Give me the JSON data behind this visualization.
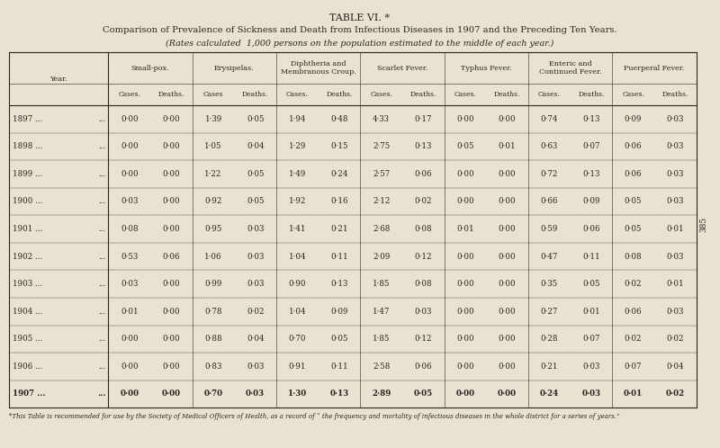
{
  "title": "TABLE VI. *",
  "subtitle": "Comparison of Prevalence of Sickness and Death from Infectious Diseases in 1907 and the Preceding Ten Years.",
  "subtitle2": "(Rates calculated  1,000 persons on the population estimated to the middle of each year.)",
  "footnote": "*This Table is recommended for use by the Society of Medical Officers of Health, as a record of “ the frequency and mortality of infectious diseases in the whole district for a series of years.”",
  "bg_color": "#e8e2d0",
  "text_color": "#2a2520",
  "col_groups": [
    {
      "label": "Small-pox.",
      "cols": [
        "Cases.",
        "Deaths."
      ]
    },
    {
      "label": "Erysipelas.",
      "cols": [
        "Cases",
        "Deaths."
      ]
    },
    {
      "label": "Diphtheria and\nMembranous Croup.",
      "cols": [
        "Cases.",
        "Deaths."
      ]
    },
    {
      "label": "Scarlet Fever.",
      "cols": [
        "Cases.",
        "Deaths."
      ]
    },
    {
      "label": "Typhus Fever.",
      "cols": [
        "Cases.",
        "Deaths."
      ]
    },
    {
      "label": "Enteric and\nContinued Fever.",
      "cols": [
        "Cases.",
        "Deaths."
      ]
    },
    {
      "label": "Puerperal Fever.",
      "cols": [
        "Cases.",
        "Deaths."
      ]
    }
  ],
  "year_labels": [
    "1897 ...",
    "1898 ...",
    "1899 ...",
    "1900 ...",
    "1901 ...",
    "1902 ...",
    "1903 ...",
    "1904 ...",
    "1905 ...",
    "1906 ...",
    "1907 ..."
  ],
  "year_dots": [
    "...",
    "...",
    "...",
    "...",
    "...",
    "...",
    "...",
    "...",
    "...",
    "...",
    "..."
  ],
  "data": [
    [
      "0·00",
      "0·00",
      "1·39",
      "0·05",
      "1·94",
      "0·48",
      "4·33",
      "0·17",
      "0·00",
      "0·00",
      "0·74",
      "0·13",
      "0·09",
      "0·03"
    ],
    [
      "0·00",
      "0·00",
      "1·05",
      "0·04",
      "1·29",
      "0·15",
      "2·75",
      "0·13",
      "0·05",
      "0·01",
      "0·63",
      "0·07",
      "0·06",
      "0·03"
    ],
    [
      "0·00",
      "0·00",
      "1·22",
      "0·05",
      "1·49",
      "0·24",
      "2·57",
      "0·06",
      "0·00",
      "0·00",
      "0·72",
      "0·13",
      "0·06",
      "0·03"
    ],
    [
      "0·03",
      "0·00",
      "0·92",
      "0·05",
      "1·92",
      "0·16",
      "2·12",
      "0·02",
      "0·00",
      "0·00",
      "0·66",
      "0·09",
      "0·05",
      "0·03"
    ],
    [
      "0·08",
      "0·00",
      "0·95",
      "0·03",
      "1·41",
      "0·21",
      "2·68",
      "0·08",
      "0·01",
      "0·00",
      "0·59",
      "0·06",
      "0·05",
      "0·01"
    ],
    [
      "0·53",
      "0·06",
      "1·06",
      "0·03",
      "1·04",
      "0·11",
      "2·09",
      "0·12",
      "0·00",
      "0·00",
      "0·47",
      "0·11",
      "0·08",
      "0·03"
    ],
    [
      "0·03",
      "0·00",
      "0·99",
      "0·03",
      "0·90",
      "0·13",
      "1·85",
      "0·08",
      "0·00",
      "0·00",
      "0·35",
      "0·05",
      "0·02",
      "0·01"
    ],
    [
      "0·01",
      "0·00",
      "0·78",
      "0·02",
      "1·04",
      "0·09",
      "1·47",
      "0·03",
      "0·00",
      "0·00",
      "0·27",
      "0·01",
      "0·06",
      "0·03"
    ],
    [
      "0·00",
      "0·00",
      "0·88",
      "0·04",
      "0·70",
      "0·05",
      "1·85",
      "0·12",
      "0·00",
      "0·00",
      "0·28",
      "0·07",
      "0·02",
      "0·02"
    ],
    [
      "0·00",
      "0·00",
      "0·83",
      "0·03",
      "0·91",
      "0·11",
      "2·58",
      "0·06",
      "0·00",
      "0·00",
      "0·21",
      "0·03",
      "0·07",
      "0·04"
    ],
    [
      "0·00",
      "0·00",
      "0·70",
      "0·03",
      "1·30",
      "0·13",
      "2·89",
      "0·05",
      "0·00",
      "0·00",
      "0·24",
      "0·03",
      "0·01",
      "0·02"
    ]
  ],
  "last_row_bold": true,
  "page_number": "385",
  "title_fontsize": 8.0,
  "subtitle_fontsize": 7.2,
  "subtitle2_fontsize": 6.8,
  "header_fontsize": 5.8,
  "subheader_fontsize": 5.5,
  "data_fontsize": 6.2,
  "footnote_fontsize": 5.0
}
